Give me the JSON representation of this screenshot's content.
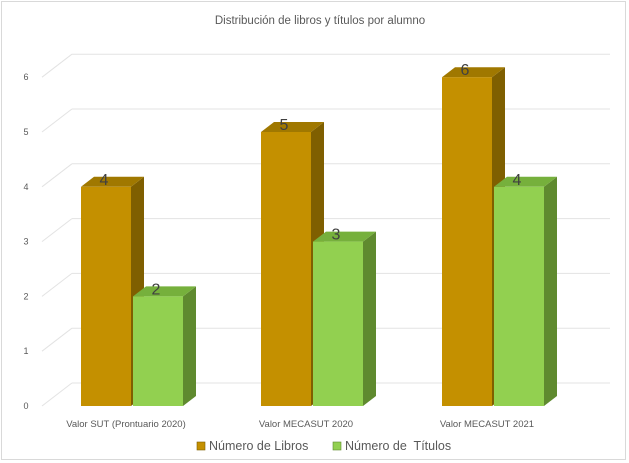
{
  "chart_data": {
    "type": "bar",
    "title": "Distribución de libros y títulos por alumno",
    "xlabel": "",
    "ylabel": "",
    "categories": [
      "Valor SUT (Prontuario 2020)",
      "Valor MECASUT 2020",
      "Valor MECASUT 2021"
    ],
    "series": [
      {
        "name": "Número de Libros",
        "values": [
          4,
          5,
          6
        ],
        "color": "#c49000",
        "side_color": "#7f5f00",
        "top_color": "#a07800"
      },
      {
        "name": "Número de  Títulos",
        "values": [
          2,
          3,
          4
        ],
        "color": "#92d050",
        "side_color": "#5f8a2f",
        "top_color": "#76b03c"
      }
    ],
    "ylim": [
      0,
      6
    ],
    "yticks": [
      0,
      1,
      2,
      3,
      4,
      5,
      6
    ],
    "grid": true,
    "legend_position": "bottom",
    "data_labels": true
  }
}
